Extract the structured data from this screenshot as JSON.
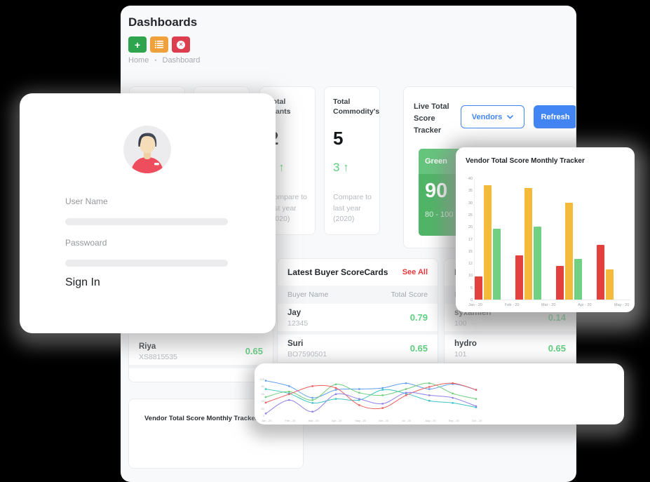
{
  "page": {
    "title": "Dashboards",
    "breadcrumb": {
      "home": "Home",
      "separator": "•",
      "current": "Dashboard"
    }
  },
  "toolbar": {
    "add_color": "#2ea44f",
    "list_color": "#f0a13c",
    "close_color": "#dc3d4f"
  },
  "stats": {
    "plants": {
      "title": "Total Plants",
      "value": "2",
      "delta": "2 ↑",
      "note": "Compare to last year (2020)"
    },
    "commodity": {
      "title": "Total Commodity's",
      "value": "5",
      "delta": "3 ↑",
      "note": "Compare to last year (2020)"
    }
  },
  "tracker": {
    "title": "Live Total Score Tracker",
    "vendors_label": "Vendors",
    "refresh_label": "Refresh",
    "green": {
      "label": "Green",
      "value": "90",
      "range": "80 - 100",
      "header_color": "#65c57d",
      "body_color": "#4fb566"
    },
    "yellow": {
      "header_color": "#eeba3e"
    },
    "red": {
      "header_color": "#d5434e"
    }
  },
  "buyer_table": {
    "title": "Latest Buyer ScoreCards",
    "action": "See All",
    "columns": {
      "name": "Buyer Name",
      "score": "Total Score"
    },
    "rows": [
      {
        "name": "Jay",
        "id": "12345",
        "score": "0.79"
      },
      {
        "name": "Suri",
        "id": "BO7590501",
        "score": "0.65"
      }
    ]
  },
  "vendor_table": {
    "rows": [
      {
        "name": "Riya",
        "id": "XS8815535",
        "score": "0.65"
      }
    ]
  },
  "plant_table": {
    "title_visible": "La",
    "column_visible": "Pla",
    "rows": [
      {
        "name": "syxamien",
        "id": "100",
        "score": "0.14"
      },
      {
        "name": "hydro",
        "id": "101",
        "score": "0.65"
      }
    ]
  },
  "signin": {
    "username_label": "User Name",
    "password_label": "Passwoard",
    "submit_label": "Sign In"
  },
  "bottom_card": {
    "title": "Vendor Total Score Monthly Tracker"
  },
  "chart_data": [
    {
      "type": "bar",
      "title": "Vendor Total Score Monthly Tracker",
      "ylim": [
        0,
        40
      ],
      "y_ticks": [
        0,
        5,
        10,
        12,
        15,
        17,
        20,
        25,
        30,
        35,
        40
      ],
      "x_labels": [
        "Jan - 20",
        "Feb - 20",
        "Mar - 20",
        "Apr - 20",
        "May - 20"
      ],
      "grid": false,
      "legend": false,
      "colors": {
        "red": "#e2413d",
        "yellow": "#f3ba3c",
        "green": "#72d083"
      },
      "bars": [
        {
          "color": "red",
          "value": 9.5
        },
        {
          "color": "yellow",
          "value": 37
        },
        {
          "color": "green",
          "value": 19.5
        },
        {
          "color": "red",
          "value": 14
        },
        {
          "color": "yellow",
          "value": 36
        },
        {
          "color": "green",
          "value": 20
        },
        {
          "color": "red",
          "value": 11.5
        },
        {
          "color": "yellow",
          "value": 30
        },
        {
          "color": "green",
          "value": 13
        },
        {
          "color": "red",
          "value": 16
        },
        {
          "color": "yellow",
          "value": 11
        }
      ]
    },
    {
      "type": "line",
      "title": "",
      "ylim": [
        0,
        100
      ],
      "y_ticks": [
        0,
        20,
        40,
        60,
        80,
        100
      ],
      "x_labels": [
        "Jan - 20",
        "Feb - 20",
        "Mar - 20",
        "Apr - 20",
        "May - 20",
        "Jun - 20",
        "Jul - 20",
        "Aug - 20",
        "Sep - 20",
        "Oct - 20"
      ],
      "grid": false,
      "legend": false,
      "series": [
        {
          "name": "blue",
          "color": "#64a0f0",
          "values": [
            95,
            80,
            48,
            70,
            72,
            75,
            88,
            72,
            86,
            70
          ]
        },
        {
          "name": "teal",
          "color": "#3bc3c8",
          "values": [
            72,
            60,
            34,
            45,
            42,
            70,
            60,
            40,
            34,
            22
          ]
        },
        {
          "name": "green",
          "color": "#6fce7e",
          "values": [
            50,
            65,
            42,
            85,
            62,
            55,
            72,
            88,
            60,
            45
          ]
        },
        {
          "name": "red",
          "color": "#ed5e5e",
          "values": [
            35,
            58,
            80,
            75,
            28,
            20,
            55,
            78,
            88,
            70
          ]
        },
        {
          "name": "purple",
          "color": "#8f83ea",
          "values": [
            5,
            42,
            10,
            58,
            45,
            32,
            62,
            55,
            48,
            25
          ]
        }
      ]
    }
  ]
}
